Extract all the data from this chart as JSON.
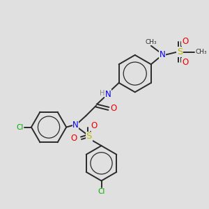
{
  "bg_color": "#e0e0e0",
  "bond_color": "#2a2a2a",
  "bond_width": 1.4,
  "colors": {
    "N": "#0000ee",
    "O": "#ee0000",
    "S": "#bbbb00",
    "Cl": "#00aa00",
    "C": "#2a2a2a",
    "H": "#888888"
  },
  "font_size": 7.5
}
